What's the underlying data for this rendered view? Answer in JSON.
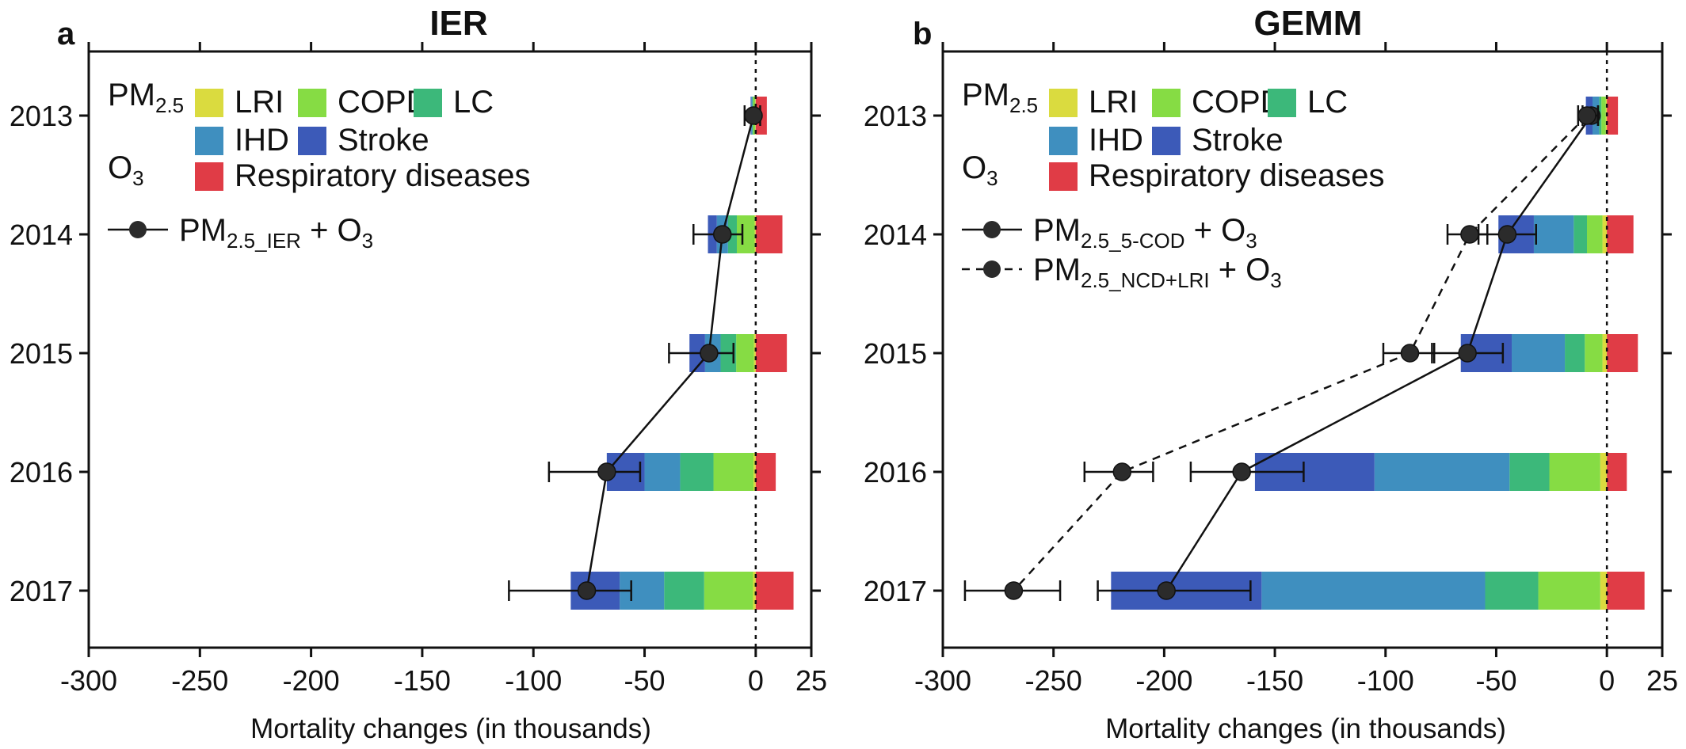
{
  "figure": {
    "pm25_label": "PM",
    "pm25_sub": "2.5",
    "o3_label": "O",
    "o3_sub": "3",
    "causes": [
      {
        "key": "LRI",
        "label": "LRI",
        "color": "#dadb3f"
      },
      {
        "key": "COPD",
        "label": "COPD",
        "color": "#86dc44"
      },
      {
        "key": "LC",
        "label": "LC",
        "color": "#3cb87a"
      },
      {
        "key": "IHD",
        "label": "IHD",
        "color": "#3f8fbf"
      },
      {
        "key": "Stroke",
        "label": "Stroke",
        "color": "#3c5ab8"
      },
      {
        "key": "Resp",
        "label": "Respiratory diseases",
        "color": "#e03c46"
      }
    ],
    "years": [
      "2013",
      "2014",
      "2015",
      "2016",
      "2017"
    ]
  },
  "chart_data": [
    {
      "type": "bar",
      "panel": "a",
      "title": "IER",
      "xlabel": "Mortality changes (in thousands)",
      "xlim": [
        -300,
        25
      ],
      "xticks": [
        -300,
        -250,
        -200,
        -150,
        -100,
        -50,
        0,
        25
      ],
      "categories": [
        "2013",
        "2014",
        "2015",
        "2016",
        "2017"
      ],
      "stacked": true,
      "series": [
        {
          "name": "LRI",
          "values": [
            -0.2,
            -0.5,
            -0.8,
            -1.0,
            -1.2
          ]
        },
        {
          "name": "COPD",
          "values": [
            -1.0,
            -8.0,
            -8.0,
            -18.0,
            -22.0
          ]
        },
        {
          "name": "LC",
          "values": [
            -0.3,
            -4.0,
            -7.0,
            -15.0,
            -18.0
          ]
        },
        {
          "name": "IHD",
          "values": [
            -0.5,
            -5.0,
            -7.0,
            -16.0,
            -20.0
          ]
        },
        {
          "name": "Stroke",
          "values": [
            -0.3,
            -4.0,
            -7.0,
            -17.0,
            -22.0
          ]
        },
        {
          "name": "Respiratory diseases",
          "values": [
            5.0,
            12.0,
            14.0,
            9.0,
            17.0
          ]
        }
      ],
      "lines": [
        {
          "name": "PM2.5_IER + O3",
          "style": "solid",
          "values": [
            -1,
            -15,
            -21,
            -67,
            -76
          ],
          "err_low": [
            -5,
            -28,
            -39,
            -93,
            -111
          ],
          "err_high": [
            2,
            -6,
            -10,
            -52,
            -56
          ]
        }
      ],
      "legend": {
        "line_entries": [
          {
            "main": "PM",
            "sub": "2.5_IER",
            "tail": " + O",
            "tail_sub": "3",
            "style": "solid"
          }
        ]
      }
    },
    {
      "type": "bar",
      "panel": "b",
      "title": "GEMM",
      "xlabel": "Mortality changes (in thousands)",
      "xlim": [
        -300,
        25
      ],
      "xticks": [
        -300,
        -250,
        -200,
        -150,
        -100,
        -50,
        0,
        25
      ],
      "categories": [
        "2013",
        "2014",
        "2015",
        "2016",
        "2017"
      ],
      "stacked": true,
      "series": [
        {
          "name": "LRI",
          "values": [
            -0.5,
            -2.0,
            -2.0,
            -3.0,
            -3.0
          ]
        },
        {
          "name": "COPD",
          "values": [
            -2.0,
            -7.0,
            -8.0,
            -23.0,
            -28.0
          ]
        },
        {
          "name": "LC",
          "values": [
            -1.0,
            -6.0,
            -9.0,
            -18.0,
            -24.0
          ]
        },
        {
          "name": "IHD",
          "values": [
            -3.0,
            -18.0,
            -24.0,
            -61.0,
            -101.0
          ]
        },
        {
          "name": "Stroke",
          "values": [
            -3.0,
            -16.0,
            -23.0,
            -54.0,
            -68.0
          ]
        },
        {
          "name": "Respiratory diseases",
          "values": [
            5.0,
            12.0,
            14.0,
            9.0,
            17.0
          ]
        }
      ],
      "lines": [
        {
          "name": "PM2.5_5-COD + O3",
          "style": "solid",
          "values": [
            -7,
            -45,
            -63,
            -165,
            -199
          ],
          "err_low": [
            -11,
            -58,
            -79,
            -188,
            -230
          ],
          "err_high": [
            -4,
            -32,
            -47,
            -137,
            -161
          ]
        },
        {
          "name": "PM2.5_NCD+LRI + O3",
          "style": "dashed",
          "values": [
            -9,
            -62,
            -89,
            -219,
            -268
          ],
          "err_low": [
            -13,
            -72,
            -101,
            -236,
            -290
          ],
          "err_high": [
            -4,
            -54,
            -78,
            -205,
            -247
          ]
        }
      ],
      "legend": {
        "line_entries": [
          {
            "main": "PM",
            "sub": "2.5_5-COD",
            "tail": " + O",
            "tail_sub": "3",
            "style": "solid"
          },
          {
            "main": "PM",
            "sub": "2.5_NCD+LRI",
            "tail": " + O",
            "tail_sub": "3",
            "style": "dashed"
          }
        ]
      }
    }
  ]
}
